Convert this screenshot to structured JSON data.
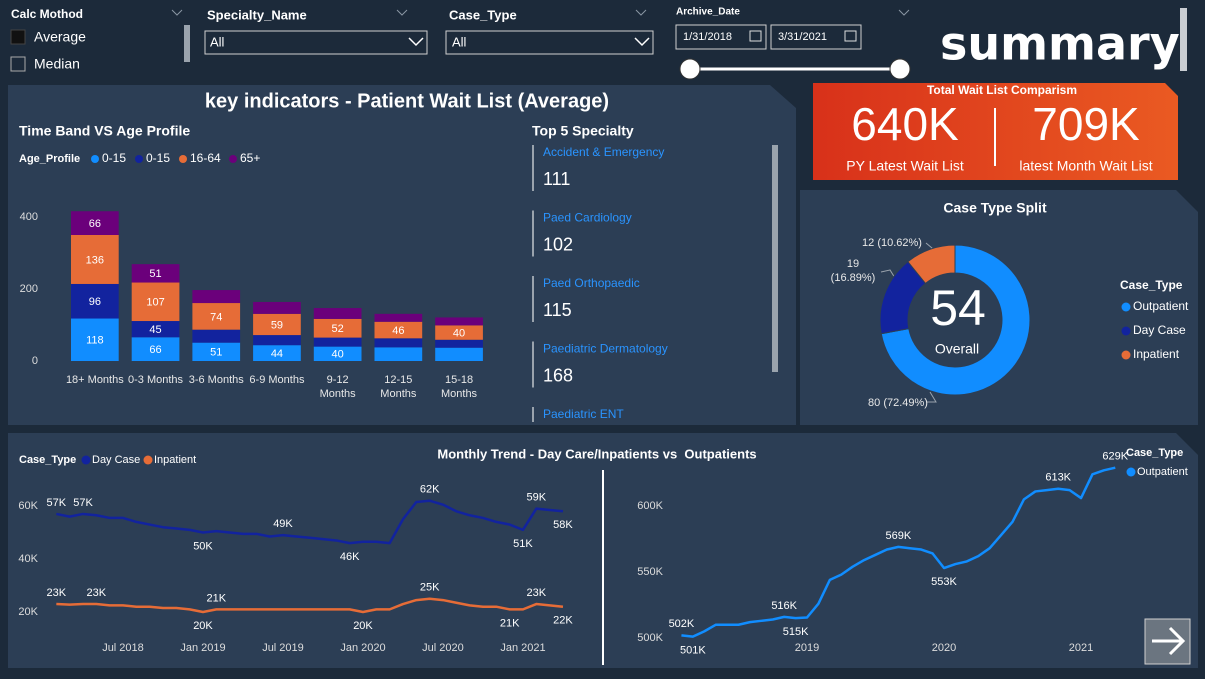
{
  "page_title": "summary",
  "panel_title": "key indicators - Patient Wait List (Average)",
  "filters": {
    "calc_method": {
      "label": "Calc Mothod",
      "options": [
        "Average",
        "Median"
      ]
    },
    "specialty": {
      "label": "Specialty_Name",
      "value": "All"
    },
    "case_type": {
      "label": "Case_Type",
      "value": "All"
    },
    "archive_date": {
      "label": "Archive_Date",
      "start": "1/31/2018",
      "end": "3/31/2021"
    }
  },
  "kpi": {
    "title": "Total Wait List Comparism",
    "items": [
      {
        "value": "640K",
        "label": "PY Latest Wait List"
      },
      {
        "value": "709K",
        "label": "latest Month Wait List"
      }
    ]
  },
  "top_specialty": {
    "title": "Top 5 Specialty",
    "items": [
      {
        "name": "Accident & Emergency",
        "value": 111
      },
      {
        "name": "Paed Cardiology",
        "value": 102
      },
      {
        "name": "Paed Orthopaedic",
        "value": 115
      },
      {
        "name": "Paediatric Dermatology",
        "value": 168
      },
      {
        "name": "Paediatric ENT"
      }
    ]
  },
  "chart_data": [
    {
      "type": "bar",
      "title": "Time Band VS Age Profile",
      "legend_title": "Age_Profile",
      "categories": [
        "18+ Months",
        "0-3 Months",
        "3-6 Months",
        "6-9 Months",
        "9-12 Months",
        "12-15 Months",
        "15-18 Months"
      ],
      "series": [
        {
          "name": "0-15",
          "color": "#118DFF",
          "values": [
            118,
            66,
            51,
            44,
            40,
            38,
            37
          ]
        },
        {
          "name": "0-15",
          "color": "#12239E",
          "values": [
            96,
            45,
            36,
            28,
            25,
            25,
            22
          ]
        },
        {
          "name": "16-64",
          "color": "#E66C37",
          "values": [
            136,
            107,
            74,
            59,
            52,
            46,
            40
          ]
        },
        {
          "name": "65+",
          "color": "#6B007B",
          "values": [
            66,
            51,
            36,
            33,
            30,
            22,
            22
          ]
        }
      ],
      "ylim": [
        0,
        420
      ],
      "yticks": [
        0,
        200,
        400
      ]
    },
    {
      "type": "donut",
      "title": "Case Type Split",
      "legend_title": "Case_Type",
      "categories": [
        "Outpatient",
        "Day Case",
        "Inpatient"
      ],
      "values": [
        80,
        19,
        12
      ],
      "value_labels": [
        "80 (72.49%)",
        "19 (16.89%)",
        "12 (10.62%)"
      ],
      "colors": [
        "#118DFF",
        "#12239E",
        "#E66C37"
      ],
      "center_value": 54,
      "center_label": "Overall"
    },
    {
      "type": "line",
      "title": "Monthly Trend - Day Care/Inpatients vs  Outpatients",
      "legend_title": "Case_Type",
      "x": [
        "2018-02",
        "2018-03",
        "2018-04",
        "2018-05",
        "2018-06",
        "2018-07",
        "2018-08",
        "2018-09",
        "2018-10",
        "2018-11",
        "2018-12",
        "2019-01",
        "2019-02",
        "2019-03",
        "2019-04",
        "2019-05",
        "2019-06",
        "2019-07",
        "2019-08",
        "2019-09",
        "2019-10",
        "2019-11",
        "2019-12",
        "2020-01",
        "2020-02",
        "2020-03",
        "2020-04",
        "2020-05",
        "2020-06",
        "2020-07",
        "2020-08",
        "2020-09",
        "2020-10",
        "2020-11",
        "2020-12",
        "2021-01",
        "2021-02",
        "2021-03",
        "2021-04"
      ],
      "xlim": [
        "2018-01",
        "2021-05"
      ],
      "xticks": [
        {
          "value": "2018-07",
          "label": "Jul 2018"
        },
        {
          "value": "2019-01",
          "label": "Jan 2019"
        },
        {
          "value": "2019-07",
          "label": "Jul 2019"
        },
        {
          "value": "2020-01",
          "label": "Jan 2020"
        },
        {
          "value": "2020-07",
          "label": "Jul 2020"
        },
        {
          "value": "2021-01",
          "label": "Jan 2021"
        }
      ],
      "ylim": [
        15000,
        73000
      ],
      "yticks": [
        {
          "value": 20000,
          "label": "20K"
        },
        {
          "value": 40000,
          "label": "40K"
        },
        {
          "value": 60000,
          "label": "60K"
        }
      ],
      "series": [
        {
          "name": "Day Case",
          "color": "#12239E",
          "values": [
            57000,
            56000,
            57000,
            56500,
            55500,
            55500,
            54000,
            53000,
            52000,
            51500,
            51000,
            50000,
            50500,
            50000,
            49500,
            49500,
            48500,
            49000,
            48500,
            48000,
            47500,
            47000,
            46000,
            46500,
            46500,
            46000,
            55000,
            61500,
            62000,
            60500,
            58000,
            56500,
            55500,
            54000,
            53000,
            51000,
            59000,
            58500,
            58000
          ],
          "value_labels": [
            "57K",
            null,
            "57K",
            null,
            null,
            null,
            null,
            null,
            null,
            null,
            null,
            "50K",
            null,
            null,
            null,
            null,
            null,
            "49K",
            null,
            null,
            null,
            null,
            "46K",
            null,
            null,
            null,
            null,
            null,
            "62K",
            null,
            null,
            null,
            null,
            null,
            null,
            "51K",
            "59K",
            null,
            "58K"
          ]
        },
        {
          "name": "Inpatient",
          "color": "#E66C37",
          "values": [
            23000,
            22800,
            23000,
            23000,
            22500,
            22500,
            22000,
            22000,
            21500,
            21500,
            21000,
            20000,
            21000,
            21000,
            21000,
            21000,
            21000,
            21000,
            21000,
            21000,
            21000,
            21000,
            21000,
            20000,
            21000,
            21000,
            23000,
            24500,
            25000,
            24500,
            23500,
            22500,
            22000,
            22000,
            21000,
            21000,
            23000,
            22500,
            22000
          ],
          "value_labels": [
            "23K",
            null,
            null,
            "23K",
            null,
            null,
            null,
            null,
            null,
            null,
            null,
            "20K",
            "21K",
            null,
            null,
            null,
            null,
            null,
            null,
            null,
            null,
            null,
            null,
            "20K",
            null,
            null,
            null,
            null,
            "25K",
            null,
            null,
            null,
            null,
            null,
            "21K",
            null,
            "23K",
            null,
            "22K"
          ]
        }
      ]
    },
    {
      "type": "line",
      "legend_title": "Case_Type",
      "x": [
        "2018-02",
        "2018-03",
        "2018-04",
        "2018-05",
        "2018-06",
        "2018-07",
        "2018-08",
        "2018-09",
        "2018-10",
        "2018-11",
        "2018-12",
        "2019-01",
        "2019-02",
        "2019-03",
        "2019-04",
        "2019-05",
        "2019-06",
        "2019-07",
        "2019-08",
        "2019-09",
        "2019-10",
        "2019-11",
        "2019-12",
        "2020-01",
        "2020-02",
        "2020-03",
        "2020-04",
        "2020-05",
        "2020-06",
        "2020-07",
        "2020-08",
        "2020-09",
        "2020-10",
        "2020-11",
        "2020-12",
        "2021-01",
        "2021-02",
        "2021-03",
        "2021-04"
      ],
      "xlim": [
        "2018-01",
        "2021-05"
      ],
      "xticks": [
        {
          "value": "2019-01",
          "label": "2019"
        },
        {
          "value": "2020-01",
          "label": "2020"
        },
        {
          "value": "2021-01",
          "label": "2021"
        }
      ],
      "ylim": [
        484000,
        638000
      ],
      "yticks": [
        {
          "value": 500000,
          "label": "500K"
        },
        {
          "value": 550000,
          "label": "550K"
        },
        {
          "value": 600000,
          "label": "600K"
        }
      ],
      "series": [
        {
          "name": "Outpatient",
          "color": "#118DFF",
          "values": [
            502000,
            501000,
            505000,
            510000,
            510000,
            510000,
            512000,
            513000,
            514000,
            516000,
            515000,
            515500,
            526000,
            544000,
            548000,
            554000,
            559000,
            563000,
            567000,
            569000,
            568000,
            567000,
            564000,
            553000,
            556000,
            558000,
            562000,
            568000,
            578000,
            588000,
            605000,
            611000,
            612000,
            613000,
            612000,
            606000,
            624000,
            627000,
            629000
          ],
          "value_labels": [
            "502K",
            "501K",
            null,
            null,
            null,
            null,
            null,
            null,
            null,
            "516K",
            "515K",
            null,
            null,
            null,
            null,
            null,
            null,
            null,
            null,
            "569K",
            null,
            null,
            null,
            "553K",
            null,
            null,
            null,
            null,
            null,
            null,
            null,
            null,
            null,
            "613K",
            null,
            null,
            null,
            null,
            "629K"
          ]
        }
      ]
    }
  ]
}
